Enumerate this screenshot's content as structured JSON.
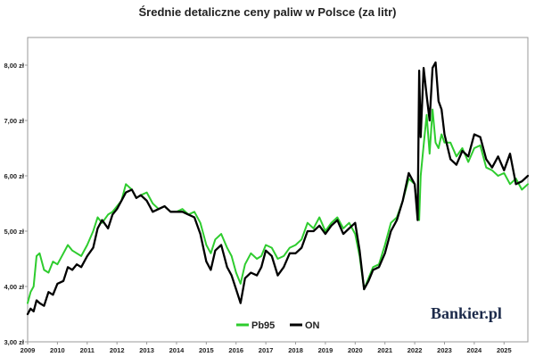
{
  "chart_data": {
    "type": "line",
    "title": "Średnie detaliczne ceny paliw w Polsce (za litr)",
    "xlabel": "",
    "ylabel": "",
    "ylim": [
      3.0,
      8.5
    ],
    "xlim": [
      2009.0,
      2025.8
    ],
    "y_ticks": [
      3,
      4,
      5,
      6,
      7,
      8
    ],
    "y_tick_labels": [
      "3,00 zł",
      "4,00 zł",
      "5,00 zł",
      "6,00 zł",
      "7,00 zł",
      "8,00 zł"
    ],
    "x_ticks": [
      2009,
      2010,
      2011,
      2012,
      2013,
      2014,
      2015,
      2016,
      2017,
      2018,
      2019,
      2020,
      2021,
      2022,
      2023,
      2024,
      2025
    ],
    "x_tick_labels": [
      "2009",
      "2010",
      "2011",
      "2012",
      "2013",
      "2014",
      "2015",
      "2016",
      "2017",
      "2018",
      "2019",
      "2020",
      "2021",
      "2022",
      "2023",
      "2024",
      "2025"
    ],
    "legend_position": "bottom-center",
    "watermark": "Bankier.pl",
    "series": [
      {
        "name": "Pb95",
        "color": "#2ecc2e",
        "x": [
          2009.0,
          2009.1,
          2009.2,
          2009.3,
          2009.4,
          2009.55,
          2009.7,
          2009.85,
          2010.0,
          2010.2,
          2010.35,
          2010.5,
          2010.65,
          2010.8,
          2011.0,
          2011.2,
          2011.35,
          2011.5,
          2011.7,
          2011.85,
          2012.0,
          2012.15,
          2012.3,
          2012.5,
          2012.65,
          2012.8,
          2013.0,
          2013.2,
          2013.4,
          2013.6,
          2013.8,
          2014.0,
          2014.2,
          2014.4,
          2014.6,
          2014.8,
          2015.0,
          2015.15,
          2015.3,
          2015.5,
          2015.7,
          2015.85,
          2016.0,
          2016.15,
          2016.3,
          2016.5,
          2016.7,
          2016.85,
          2017.0,
          2017.2,
          2017.4,
          2017.6,
          2017.8,
          2018.0,
          2018.2,
          2018.4,
          2018.6,
          2018.8,
          2019.0,
          2019.2,
          2019.4,
          2019.6,
          2019.8,
          2020.0,
          2020.15,
          2020.3,
          2020.45,
          2020.6,
          2020.8,
          2021.0,
          2021.2,
          2021.4,
          2021.6,
          2021.8,
          2022.0,
          2022.1,
          2022.15,
          2022.2,
          2022.3,
          2022.4,
          2022.5,
          2022.6,
          2022.7,
          2022.8,
          2022.9,
          2023.0,
          2023.2,
          2023.4,
          2023.6,
          2023.8,
          2024.0,
          2024.2,
          2024.4,
          2024.6,
          2024.8,
          2025.0,
          2025.2,
          2025.4,
          2025.6,
          2025.8
        ],
        "values": [
          3.7,
          3.9,
          4.0,
          4.55,
          4.6,
          4.3,
          4.25,
          4.45,
          4.4,
          4.6,
          4.75,
          4.65,
          4.6,
          4.55,
          4.75,
          5.0,
          5.25,
          5.15,
          5.3,
          5.35,
          5.45,
          5.55,
          5.85,
          5.75,
          5.6,
          5.65,
          5.7,
          5.5,
          5.4,
          5.45,
          5.35,
          5.35,
          5.4,
          5.3,
          5.35,
          5.15,
          4.75,
          4.6,
          4.85,
          4.95,
          4.7,
          4.55,
          4.25,
          4.05,
          4.4,
          4.6,
          4.5,
          4.55,
          4.75,
          4.7,
          4.5,
          4.55,
          4.7,
          4.75,
          4.85,
          5.15,
          5.05,
          5.25,
          5.0,
          5.15,
          5.25,
          5.05,
          5.15,
          4.95,
          4.55,
          3.95,
          4.15,
          4.35,
          4.4,
          4.75,
          5.15,
          5.25,
          5.55,
          5.95,
          5.85,
          5.3,
          5.2,
          6.0,
          6.55,
          7.1,
          6.4,
          7.2,
          6.6,
          6.5,
          6.75,
          6.6,
          6.6,
          6.35,
          6.5,
          6.25,
          6.5,
          6.55,
          6.15,
          6.1,
          6.0,
          6.05,
          5.85,
          5.95,
          5.75,
          5.85
        ]
      },
      {
        "name": "ON",
        "color": "#000000",
        "x": [
          2009.0,
          2009.1,
          2009.2,
          2009.3,
          2009.4,
          2009.55,
          2009.7,
          2009.85,
          2010.0,
          2010.2,
          2010.35,
          2010.5,
          2010.65,
          2010.8,
          2011.0,
          2011.2,
          2011.35,
          2011.5,
          2011.7,
          2011.85,
          2012.0,
          2012.15,
          2012.3,
          2012.5,
          2012.65,
          2012.8,
          2013.0,
          2013.2,
          2013.4,
          2013.6,
          2013.8,
          2014.0,
          2014.2,
          2014.4,
          2014.6,
          2014.8,
          2015.0,
          2015.15,
          2015.3,
          2015.5,
          2015.7,
          2015.85,
          2016.0,
          2016.15,
          2016.3,
          2016.5,
          2016.7,
          2016.85,
          2017.0,
          2017.2,
          2017.4,
          2017.6,
          2017.8,
          2018.0,
          2018.2,
          2018.4,
          2018.6,
          2018.8,
          2019.0,
          2019.2,
          2019.4,
          2019.6,
          2019.8,
          2020.0,
          2020.15,
          2020.3,
          2020.45,
          2020.6,
          2020.8,
          2021.0,
          2021.2,
          2021.4,
          2021.6,
          2021.8,
          2022.0,
          2022.1,
          2022.15,
          2022.2,
          2022.3,
          2022.4,
          2022.5,
          2022.6,
          2022.7,
          2022.8,
          2022.9,
          2023.0,
          2023.2,
          2023.4,
          2023.6,
          2023.8,
          2024.0,
          2024.2,
          2024.4,
          2024.6,
          2024.8,
          2025.0,
          2025.2,
          2025.4,
          2025.6,
          2025.8
        ],
        "values": [
          3.5,
          3.6,
          3.55,
          3.75,
          3.7,
          3.65,
          3.9,
          3.85,
          4.05,
          4.1,
          4.35,
          4.3,
          4.4,
          4.35,
          4.55,
          4.7,
          5.05,
          5.2,
          5.05,
          5.3,
          5.4,
          5.55,
          5.7,
          5.75,
          5.6,
          5.65,
          5.55,
          5.35,
          5.4,
          5.45,
          5.35,
          5.35,
          5.35,
          5.3,
          5.25,
          4.95,
          4.45,
          4.3,
          4.65,
          4.75,
          4.35,
          4.2,
          3.95,
          3.7,
          4.15,
          4.25,
          4.2,
          4.35,
          4.65,
          4.55,
          4.2,
          4.35,
          4.6,
          4.6,
          4.7,
          5.0,
          5.0,
          5.1,
          4.95,
          5.1,
          5.2,
          4.95,
          5.05,
          5.15,
          4.65,
          3.95,
          4.1,
          4.3,
          4.35,
          4.6,
          5.0,
          5.2,
          5.55,
          6.05,
          5.85,
          5.2,
          7.9,
          6.7,
          7.95,
          7.45,
          7.0,
          7.95,
          8.05,
          7.35,
          7.2,
          6.75,
          6.3,
          6.2,
          6.45,
          6.35,
          6.75,
          6.7,
          6.3,
          6.15,
          6.35,
          6.1,
          6.4,
          5.85,
          5.9,
          6.0
        ]
      }
    ]
  }
}
